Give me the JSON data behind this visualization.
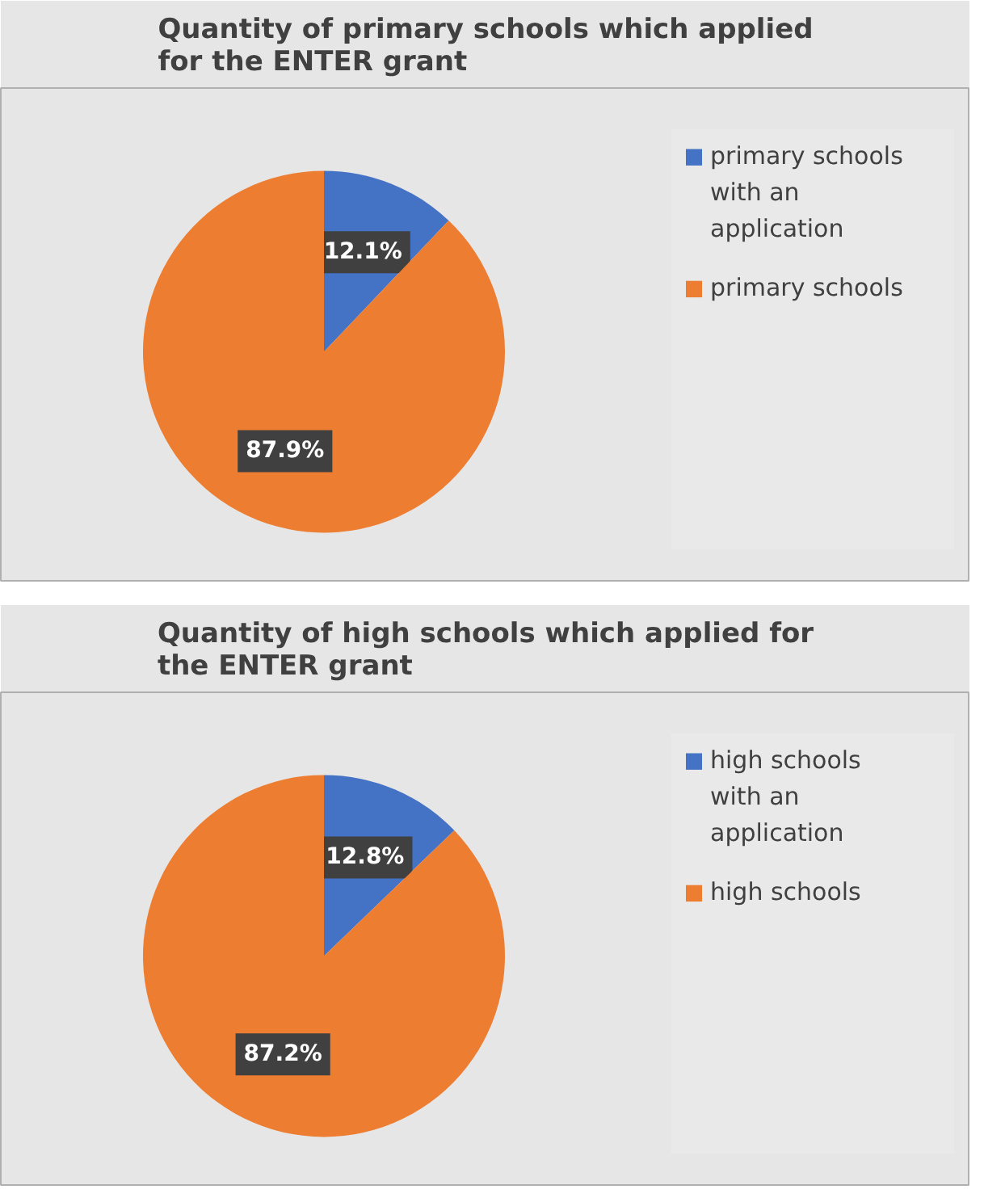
{
  "chart_data": [
    {
      "type": "pie",
      "title": "Quantity of primary schools which applied for the ENTER grant",
      "categories": [
        "primary schools with an application",
        "primary schools"
      ],
      "values": [
        12.1,
        87.9
      ],
      "value_labels": [
        "12.1%",
        "87.9%"
      ],
      "colors": [
        "#4472c4",
        "#ed7d31"
      ],
      "legend": "right"
    },
    {
      "type": "pie",
      "title": "Quantity of high schools which applied for the ENTER grant",
      "categories": [
        "high schools with an application",
        "high schools"
      ],
      "values": [
        12.8,
        87.2
      ],
      "value_labels": [
        "12.8%",
        "87.2%"
      ],
      "colors": [
        "#4472c4",
        "#ed7d31"
      ],
      "legend": "right"
    }
  ]
}
